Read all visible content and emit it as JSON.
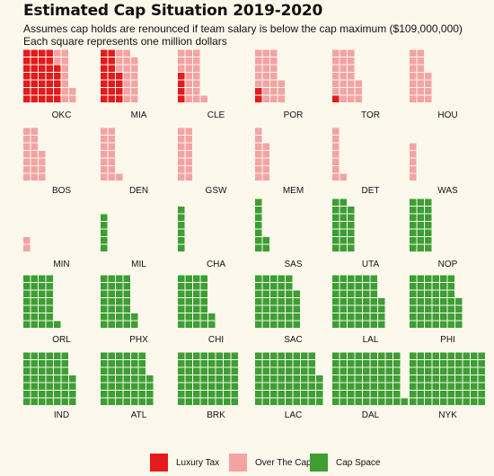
{
  "title": "Estimated Cap Situation 2019-2020",
  "subtitle_line1": "Assumes cap holds are renounced if team salary is below the cap maximum ($109,000,000)",
  "subtitle_line2": "Each square represents one million dollars",
  "colors": {
    "luxury_tax": "#e41a1c",
    "over_the_cap": "#f4a3a3",
    "cap_space": "#3d9e34",
    "background": "#fcf8ec"
  },
  "legend": [
    {
      "label": "Luxury Tax",
      "color": "#e41a1c"
    },
    {
      "label": "Over The Cap",
      "color": "#f4a3a3"
    },
    {
      "label": "Cap Space",
      "color": "#3d9e34"
    }
  ],
  "chart_data": {
    "type": "waffle",
    "unit": "one million dollars per square",
    "teams": [
      {
        "team": "OKC",
        "luxury_tax": 33,
        "over_the_cap": 11,
        "cap_space": 0
      },
      {
        "team": "MIA",
        "luxury_tax": 18,
        "over_the_cap": 16,
        "cap_space": 0
      },
      {
        "team": "CLE",
        "luxury_tax": 4,
        "over_the_cap": 18,
        "cap_space": 0
      },
      {
        "team": "POR",
        "luxury_tax": 2,
        "over_the_cap": 22,
        "cap_space": 0
      },
      {
        "team": "TOR",
        "luxury_tax": 1,
        "over_the_cap": 23,
        "cap_space": 0
      },
      {
        "team": "HOU",
        "luxury_tax": 0,
        "over_the_cap": 18,
        "cap_space": 0
      },
      {
        "team": "BOS",
        "luxury_tax": 0,
        "over_the_cap": 18,
        "cap_space": 0
      },
      {
        "team": "DEN",
        "luxury_tax": 0,
        "over_the_cap": 15,
        "cap_space": 0
      },
      {
        "team": "GSW",
        "luxury_tax": 0,
        "over_the_cap": 14,
        "cap_space": 0
      },
      {
        "team": "MEM",
        "luxury_tax": 0,
        "over_the_cap": 12,
        "cap_space": 0
      },
      {
        "team": "DET",
        "luxury_tax": 0,
        "over_the_cap": 8,
        "cap_space": 0
      },
      {
        "team": "WAS",
        "luxury_tax": 0,
        "over_the_cap": 5,
        "cap_space": 0
      },
      {
        "team": "MIN",
        "luxury_tax": 0,
        "over_the_cap": 2,
        "cap_space": 0
      },
      {
        "team": "MIL",
        "luxury_tax": 0,
        "over_the_cap": 0,
        "cap_space": 5
      },
      {
        "team": "CHA",
        "luxury_tax": 0,
        "over_the_cap": 0,
        "cap_space": 6
      },
      {
        "team": "SAS",
        "luxury_tax": 0,
        "over_the_cap": 0,
        "cap_space": 9
      },
      {
        "team": "UTA",
        "luxury_tax": 0,
        "over_the_cap": 0,
        "cap_space": 20
      },
      {
        "team": "NOP",
        "luxury_tax": 0,
        "over_the_cap": 0,
        "cap_space": 21
      },
      {
        "team": "ORL",
        "luxury_tax": 0,
        "over_the_cap": 0,
        "cap_space": 29
      },
      {
        "team": "PHX",
        "luxury_tax": 0,
        "over_the_cap": 0,
        "cap_space": 30
      },
      {
        "team": "CHI",
        "luxury_tax": 0,
        "over_the_cap": 0,
        "cap_space": 30
      },
      {
        "team": "SAC",
        "luxury_tax": 0,
        "over_the_cap": 0,
        "cap_space": 40
      },
      {
        "team": "LAL",
        "luxury_tax": 0,
        "over_the_cap": 0,
        "cap_space": 46
      },
      {
        "team": "PHI",
        "luxury_tax": 0,
        "over_the_cap": 0,
        "cap_space": 46
      },
      {
        "team": "IND",
        "luxury_tax": 0,
        "over_the_cap": 0,
        "cap_space": 46
      },
      {
        "team": "ATL",
        "luxury_tax": 0,
        "over_the_cap": 0,
        "cap_space": 46
      },
      {
        "team": "BRK",
        "luxury_tax": 0,
        "over_the_cap": 0,
        "cap_space": 56
      },
      {
        "team": "LAC",
        "luxury_tax": 0,
        "over_the_cap": 0,
        "cap_space": 60
      },
      {
        "team": "DAL",
        "luxury_tax": 0,
        "over_the_cap": 0,
        "cap_space": 64
      },
      {
        "team": "NYK",
        "luxury_tax": 0,
        "over_the_cap": 0,
        "cap_space": 70
      }
    ]
  }
}
